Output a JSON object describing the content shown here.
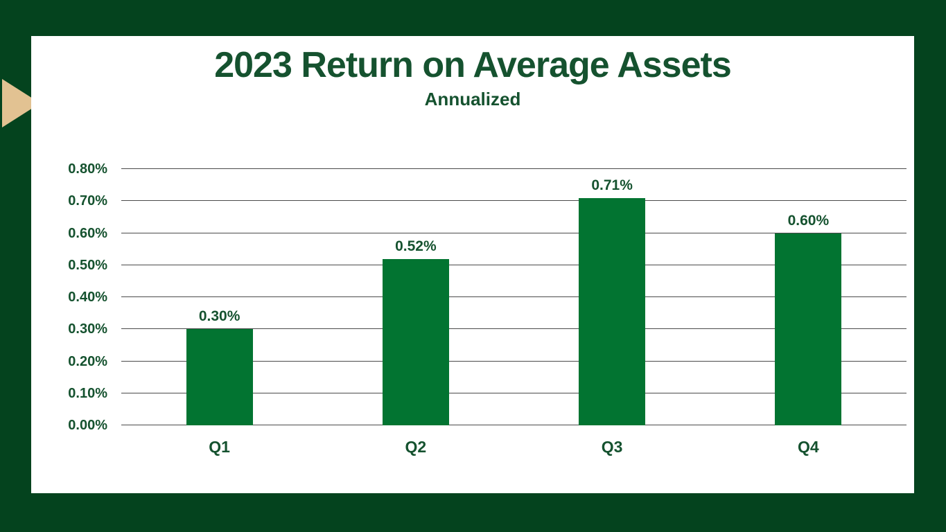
{
  "theme": {
    "background": "#04431e",
    "panel": "#ffffff",
    "bar_color": "#027431",
    "text_color": "#15522f",
    "gridline_color": "#4a4a4a",
    "accent_triangle": "#e2c292"
  },
  "chart_data": {
    "type": "bar",
    "title": "2023 Return on Average Assets",
    "subtitle": "Annualized",
    "categories": [
      "Q1",
      "Q2",
      "Q3",
      "Q4"
    ],
    "values": [
      0.3,
      0.52,
      0.71,
      0.6
    ],
    "value_labels": [
      "0.30%",
      "0.52%",
      "0.71%",
      "0.60%"
    ],
    "y_ticks": [
      "0.00%",
      "0.10%",
      "0.20%",
      "0.30%",
      "0.40%",
      "0.50%",
      "0.60%",
      "0.70%",
      "0.80%"
    ],
    "ylim": [
      0,
      0.8
    ],
    "ylabel": "",
    "xlabel": "",
    "grid": true,
    "legend": false
  }
}
